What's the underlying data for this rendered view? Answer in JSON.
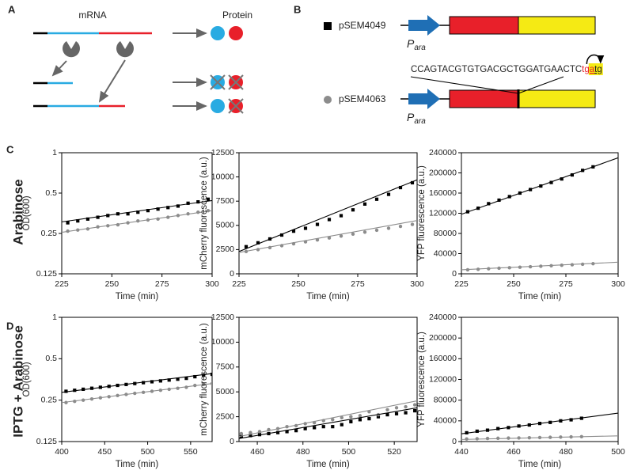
{
  "panel_labels": [
    "A",
    "B",
    "C",
    "D"
  ],
  "diagram_a": {
    "mrna_label": "mRNA",
    "protein_label": "Protein"
  },
  "diagram_b": {
    "constructs": [
      {
        "name": "pSEM4049",
        "promoter": "P",
        "promoter_sub": "ara"
      },
      {
        "name": "pSEM4063",
        "promoter": "P",
        "promoter_sub": "ara"
      }
    ],
    "sequence": [
      {
        "text": "CCAGTACGTGTGACGCTGGATGAACTC"
      },
      {
        "text": "tg",
        "color": "#e8202a"
      },
      {
        "text": "a",
        "color": "#e8202a",
        "underline": true
      },
      {
        "text": "tg",
        "underline": true
      }
    ]
  },
  "row_labels": [
    "Arabinose",
    "IPTG + Arabinose"
  ],
  "chart_data": [
    {
      "type": "scatter",
      "xlabel": "Time (min)",
      "ylabel": "OD(600)",
      "log_y": true,
      "xlim": [
        225,
        300
      ],
      "xticks": [
        225,
        250,
        275,
        300
      ],
      "ylim": [
        0.125,
        1
      ],
      "yticks": [
        0.125,
        0.25,
        0.5,
        1
      ],
      "series": [
        {
          "color": "#000000",
          "marker": "square",
          "x": [
            228,
            233,
            238,
            243,
            248,
            253,
            258,
            263,
            268,
            273,
            278,
            283,
            288,
            293,
            298
          ],
          "values": [
            0.3,
            0.31,
            0.32,
            0.33,
            0.34,
            0.35,
            0.35,
            0.36,
            0.37,
            0.38,
            0.39,
            0.4,
            0.42,
            0.43,
            0.45
          ]
        },
        {
          "color": "#8c8c8c",
          "marker": "circle",
          "x": [
            228,
            233,
            238,
            243,
            248,
            253,
            258,
            263,
            268,
            273,
            278,
            283,
            288,
            293,
            298
          ],
          "values": [
            0.26,
            0.265,
            0.27,
            0.28,
            0.285,
            0.29,
            0.3,
            0.31,
            0.315,
            0.32,
            0.33,
            0.34,
            0.35,
            0.36,
            0.37
          ]
        },
        {
          "color": "#000000",
          "marker": "line",
          "x": [
            225,
            300
          ],
          "values": [
            0.305,
            0.44
          ]
        },
        {
          "color": "#8c8c8c",
          "marker": "line",
          "x": [
            225,
            300
          ],
          "values": [
            0.255,
            0.37
          ]
        }
      ]
    },
    {
      "type": "scatter",
      "xlabel": "Time (min)",
      "ylabel": "mCherry fluorescence (a.u.)",
      "log_y": false,
      "xlim": [
        225,
        300
      ],
      "xticks": [
        225,
        250,
        275,
        300
      ],
      "ylim": [
        0,
        12500
      ],
      "yticks": [
        0,
        2500,
        5000,
        7500,
        10000,
        12500
      ],
      "series": [
        {
          "color": "#000000",
          "marker": "square",
          "x": [
            228,
            233,
            238,
            243,
            248,
            253,
            258,
            263,
            268,
            273,
            278,
            283,
            288,
            293,
            298
          ],
          "values": [
            2800,
            3200,
            3600,
            4000,
            4400,
            4700,
            5100,
            5600,
            6000,
            6600,
            7200,
            7700,
            8200,
            8900,
            9400
          ]
        },
        {
          "color": "#8c8c8c",
          "marker": "circle",
          "x": [
            228,
            233,
            238,
            243,
            248,
            253,
            258,
            263,
            268,
            273,
            278,
            283,
            288,
            293,
            298
          ],
          "values": [
            2300,
            2500,
            2700,
            2900,
            3100,
            3300,
            3500,
            3700,
            3900,
            4100,
            4300,
            4500,
            4700,
            4900,
            5100
          ]
        },
        {
          "color": "#000000",
          "marker": "line",
          "x": [
            225,
            300
          ],
          "values": [
            2300,
            9700
          ]
        },
        {
          "color": "#8c8c8c",
          "marker": "line",
          "x": [
            225,
            300
          ],
          "values": [
            2200,
            5500
          ]
        }
      ]
    },
    {
      "type": "scatter",
      "xlabel": "Time (min)",
      "ylabel": "YFP fluorescence (a.u.)",
      "log_y": false,
      "xlim": [
        225,
        300
      ],
      "xticks": [
        225,
        250,
        275,
        300
      ],
      "ylim": [
        0,
        240000
      ],
      "yticks": [
        0,
        40000,
        80000,
        120000,
        160000,
        200000,
        240000
      ],
      "series": [
        {
          "color": "#000000",
          "marker": "square",
          "x": [
            228,
            233,
            238,
            243,
            248,
            253,
            258,
            263,
            268,
            273,
            278,
            283,
            288
          ],
          "values": [
            123000,
            130000,
            139000,
            146000,
            153000,
            160000,
            167000,
            174000,
            181000,
            188000,
            196000,
            205000,
            212000
          ]
        },
        {
          "color": "#8c8c8c",
          "marker": "circle",
          "x": [
            228,
            233,
            238,
            243,
            248,
            253,
            258,
            263,
            268,
            273,
            278,
            283,
            288
          ],
          "values": [
            8000,
            9000,
            10000,
            11000,
            12000,
            13000,
            14000,
            15000,
            16000,
            17000,
            18000,
            19000,
            20000
          ]
        },
        {
          "color": "#000000",
          "marker": "line",
          "x": [
            225,
            300
          ],
          "values": [
            118000,
            230000
          ]
        },
        {
          "color": "#8c8c8c",
          "marker": "line",
          "x": [
            225,
            300
          ],
          "values": [
            8000,
            23000
          ]
        }
      ]
    },
    {
      "type": "scatter",
      "xlabel": "Time (min)",
      "ylabel": "OD(600)",
      "log_y": true,
      "xlim": [
        400,
        575
      ],
      "xticks": [
        400,
        450,
        500,
        550
      ],
      "ylim": [
        0.125,
        1
      ],
      "yticks": [
        0.125,
        0.25,
        0.5,
        1
      ],
      "series": [
        {
          "color": "#000000",
          "marker": "square",
          "x": [
            405,
            415,
            425,
            435,
            445,
            455,
            465,
            475,
            485,
            495,
            505,
            515,
            525,
            535,
            545,
            555,
            565,
            575
          ],
          "values": [
            0.29,
            0.295,
            0.3,
            0.305,
            0.31,
            0.315,
            0.32,
            0.325,
            0.33,
            0.335,
            0.34,
            0.345,
            0.35,
            0.355,
            0.36,
            0.37,
            0.38,
            0.385
          ]
        },
        {
          "color": "#8c8c8c",
          "marker": "circle",
          "x": [
            405,
            415,
            425,
            435,
            445,
            455,
            465,
            475,
            485,
            495,
            505,
            515,
            525,
            535,
            545,
            555,
            565,
            575
          ],
          "values": [
            0.24,
            0.245,
            0.25,
            0.255,
            0.26,
            0.265,
            0.27,
            0.275,
            0.28,
            0.285,
            0.29,
            0.295,
            0.3,
            0.305,
            0.31,
            0.32,
            0.325,
            0.33
          ]
        },
        {
          "color": "#000000",
          "marker": "line",
          "x": [
            400,
            575
          ],
          "values": [
            0.285,
            0.39
          ]
        },
        {
          "color": "#8c8c8c",
          "marker": "line",
          "x": [
            400,
            575
          ],
          "values": [
            0.24,
            0.33
          ]
        }
      ]
    },
    {
      "type": "scatter",
      "xlabel": "Time (min)",
      "ylabel": "mCherry fluorescence (a.u.)",
      "log_y": false,
      "xlim": [
        452,
        530
      ],
      "xticks": [
        460,
        480,
        500,
        520
      ],
      "ylim": [
        0,
        12500
      ],
      "yticks": [
        0,
        2500,
        5000,
        7500,
        10000,
        12500
      ],
      "series": [
        {
          "color": "#000000",
          "marker": "square",
          "x": [
            453,
            457,
            461,
            465,
            469,
            473,
            477,
            481,
            485,
            489,
            493,
            497,
            501,
            505,
            509,
            513,
            517,
            521,
            525,
            529
          ],
          "values": [
            500,
            600,
            700,
            800,
            900,
            1000,
            1100,
            1300,
            1400,
            1500,
            1500,
            1700,
            2000,
            2200,
            2300,
            2500,
            2700,
            2800,
            2900,
            3100
          ]
        },
        {
          "color": "#8c8c8c",
          "marker": "circle",
          "x": [
            453,
            457,
            461,
            465,
            469,
            473,
            477,
            481,
            485,
            489,
            493,
            497,
            501,
            505,
            509,
            513,
            517,
            521,
            525,
            529
          ],
          "values": [
            800,
            900,
            1000,
            1200,
            1300,
            1500,
            1600,
            1800,
            1900,
            2100,
            2200,
            2400,
            2500,
            2600,
            3000,
            2700,
            3200,
            3400,
            3500,
            3700
          ]
        },
        {
          "color": "#000000",
          "marker": "line",
          "x": [
            452,
            530
          ],
          "values": [
            300,
            3400
          ]
        },
        {
          "color": "#8c8c8c",
          "marker": "line",
          "x": [
            452,
            530
          ],
          "values": [
            500,
            4100
          ]
        }
      ]
    },
    {
      "type": "scatter",
      "xlabel": "Time (min)",
      "ylabel": "YFP fluorescence (a.u.)",
      "log_y": false,
      "xlim": [
        440,
        500
      ],
      "xticks": [
        440,
        460,
        480,
        500
      ],
      "ylim": [
        0,
        240000
      ],
      "yticks": [
        0,
        40000,
        80000,
        120000,
        160000,
        200000,
        240000
      ],
      "series": [
        {
          "color": "#000000",
          "marker": "square",
          "x": [
            442,
            446,
            450,
            454,
            458,
            462,
            466,
            470,
            474,
            478,
            482,
            486
          ],
          "values": [
            17000,
            20000,
            22000,
            25000,
            27000,
            30000,
            32000,
            35000,
            37000,
            40000,
            42000,
            45000
          ]
        },
        {
          "color": "#8c8c8c",
          "marker": "circle",
          "x": [
            442,
            446,
            450,
            454,
            458,
            462,
            466,
            470,
            474,
            478,
            482,
            486
          ],
          "values": [
            5000,
            5500,
            6000,
            6300,
            6700,
            7000,
            7400,
            7800,
            8200,
            8600,
            9000,
            9500
          ]
        },
        {
          "color": "#000000",
          "marker": "line",
          "x": [
            440,
            500
          ],
          "values": [
            15000,
            55000
          ]
        },
        {
          "color": "#8c8c8c",
          "marker": "line",
          "x": [
            440,
            500
          ],
          "values": [
            4000,
            11000
          ]
        }
      ]
    }
  ]
}
